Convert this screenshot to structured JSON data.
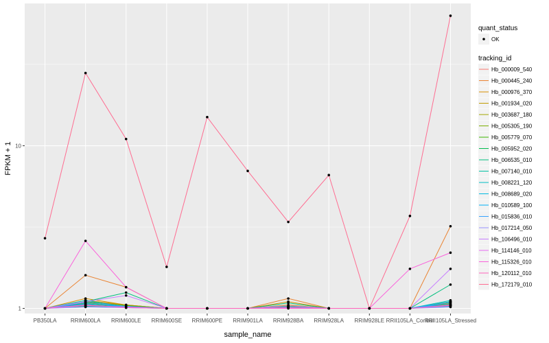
{
  "chart_data": {
    "type": "line",
    "title": "",
    "xlabel": "sample_name",
    "ylabel": "FPKM + 1",
    "y_scale": "log10",
    "ylim": [
      0.93,
      75
    ],
    "y_ticks": [
      1,
      10
    ],
    "y_tick_labels": [
      "1",
      "10"
    ],
    "grid": true,
    "background": "#ebebeb",
    "legend_position": "right",
    "categories": [
      "PB350LA",
      "RRIM600LA",
      "RRIM600LE",
      "RRIM600SE",
      "RRIM600PE",
      "RRIM901LA",
      "RRIM928BA",
      "RRIM928LA",
      "RRIM928LE",
      "RRII105LA_Control",
      "RRII105LA_Stressed"
    ],
    "shape_legend": {
      "title": "quant_status",
      "items": [
        {
          "label": "OK",
          "shape": "point"
        }
      ]
    },
    "color_legend_title": "tracking_id",
    "series": [
      {
        "name": "Hb_000009_540",
        "color": "#F8766D",
        "values": [
          1,
          1.1,
          1.05,
          1,
          1,
          1,
          1.02,
          1,
          1,
          1,
          1.05
        ]
      },
      {
        "name": "Hb_000445_240",
        "color": "#EA8331",
        "values": [
          1,
          1.6,
          1.35,
          1,
          1,
          1,
          1.15,
          1,
          1,
          1,
          3.2
        ]
      },
      {
        "name": "Hb_000976_370",
        "color": "#D89000",
        "values": [
          1,
          1.15,
          1.05,
          1,
          1,
          1,
          1.1,
          1,
          1,
          1,
          1.1
        ]
      },
      {
        "name": "Hb_001934_020",
        "color": "#C09B00",
        "values": [
          1,
          1.12,
          1.05,
          1,
          1,
          1,
          1.05,
          1,
          1,
          1,
          1.08
        ]
      },
      {
        "name": "Hb_003687_180",
        "color": "#A3A500",
        "values": [
          1,
          1.05,
          1.02,
          1,
          1,
          1,
          1.02,
          1,
          1,
          1,
          1.04
        ]
      },
      {
        "name": "Hb_005305_190",
        "color": "#7CAE00",
        "values": [
          1,
          1.08,
          1.03,
          1,
          1,
          1,
          1.03,
          1,
          1,
          1,
          1.06
        ]
      },
      {
        "name": "Hb_005779_070",
        "color": "#39B600",
        "values": [
          1,
          1.1,
          1.04,
          1,
          1,
          1,
          1.02,
          1,
          1,
          1,
          1.1
        ]
      },
      {
        "name": "Hb_005952_020",
        "color": "#00BB4E",
        "values": [
          1,
          1.03,
          1.02,
          1,
          1,
          1,
          1.01,
          1,
          1,
          1,
          1.05
        ]
      },
      {
        "name": "Hb_006535_010",
        "color": "#00BF7D",
        "values": [
          1,
          1.1,
          1.25,
          1,
          1,
          1,
          1.08,
          1,
          1,
          1,
          1.4
        ]
      },
      {
        "name": "Hb_007140_010",
        "color": "#00C1A3",
        "values": [
          1,
          1.06,
          1.03,
          1,
          1,
          1,
          1.02,
          1,
          1,
          1,
          1.1
        ]
      },
      {
        "name": "Hb_008221_120",
        "color": "#00BFC4",
        "values": [
          1,
          1.12,
          1.02,
          1,
          1,
          1,
          1.01,
          1,
          1,
          1,
          1.12
        ]
      },
      {
        "name": "Hb_008689_020",
        "color": "#00BAE0",
        "values": [
          1,
          1.04,
          1.01,
          1,
          1,
          1,
          1.01,
          1,
          1,
          1,
          1.03
        ]
      },
      {
        "name": "Hb_010589_100",
        "color": "#00B0F6",
        "values": [
          1,
          1.07,
          1.02,
          1,
          1,
          1,
          1.02,
          1,
          1,
          1,
          1.07
        ]
      },
      {
        "name": "Hb_015836_010",
        "color": "#35A2FF",
        "values": [
          1,
          1.09,
          1.03,
          1,
          1,
          1,
          1.02,
          1,
          1,
          1,
          1.09
        ]
      },
      {
        "name": "Hb_017214_050",
        "color": "#9590FF",
        "values": [
          1,
          1.02,
          1.01,
          1,
          1,
          1,
          1.01,
          1,
          1,
          1,
          1.02
        ]
      },
      {
        "name": "Hb_106496_010",
        "color": "#C77CFF",
        "values": [
          1,
          1.1,
          1.2,
          1,
          1,
          1,
          1.04,
          1,
          1,
          1,
          1.75
        ]
      },
      {
        "name": "Hb_114146_010",
        "color": "#E76BF3",
        "values": [
          1,
          1.04,
          1.02,
          1,
          1,
          1,
          1.01,
          1,
          1,
          1,
          1.05
        ]
      },
      {
        "name": "Hb_115326_010",
        "color": "#FA62DB",
        "values": [
          1,
          2.6,
          1.35,
          1,
          1,
          1,
          1,
          1,
          1,
          1.75,
          2.2
        ]
      },
      {
        "name": "Hb_120112_010",
        "color": "#FF62BC",
        "values": [
          1,
          1.05,
          1.01,
          1,
          1,
          1,
          1.01,
          1,
          1,
          1,
          1.04
        ]
      },
      {
        "name": "Hb_172179_010",
        "color": "#FF6C91",
        "values": [
          2.7,
          28,
          11,
          1.8,
          15,
          7,
          3.4,
          6.6,
          1,
          3.7,
          63
        ]
      }
    ]
  }
}
